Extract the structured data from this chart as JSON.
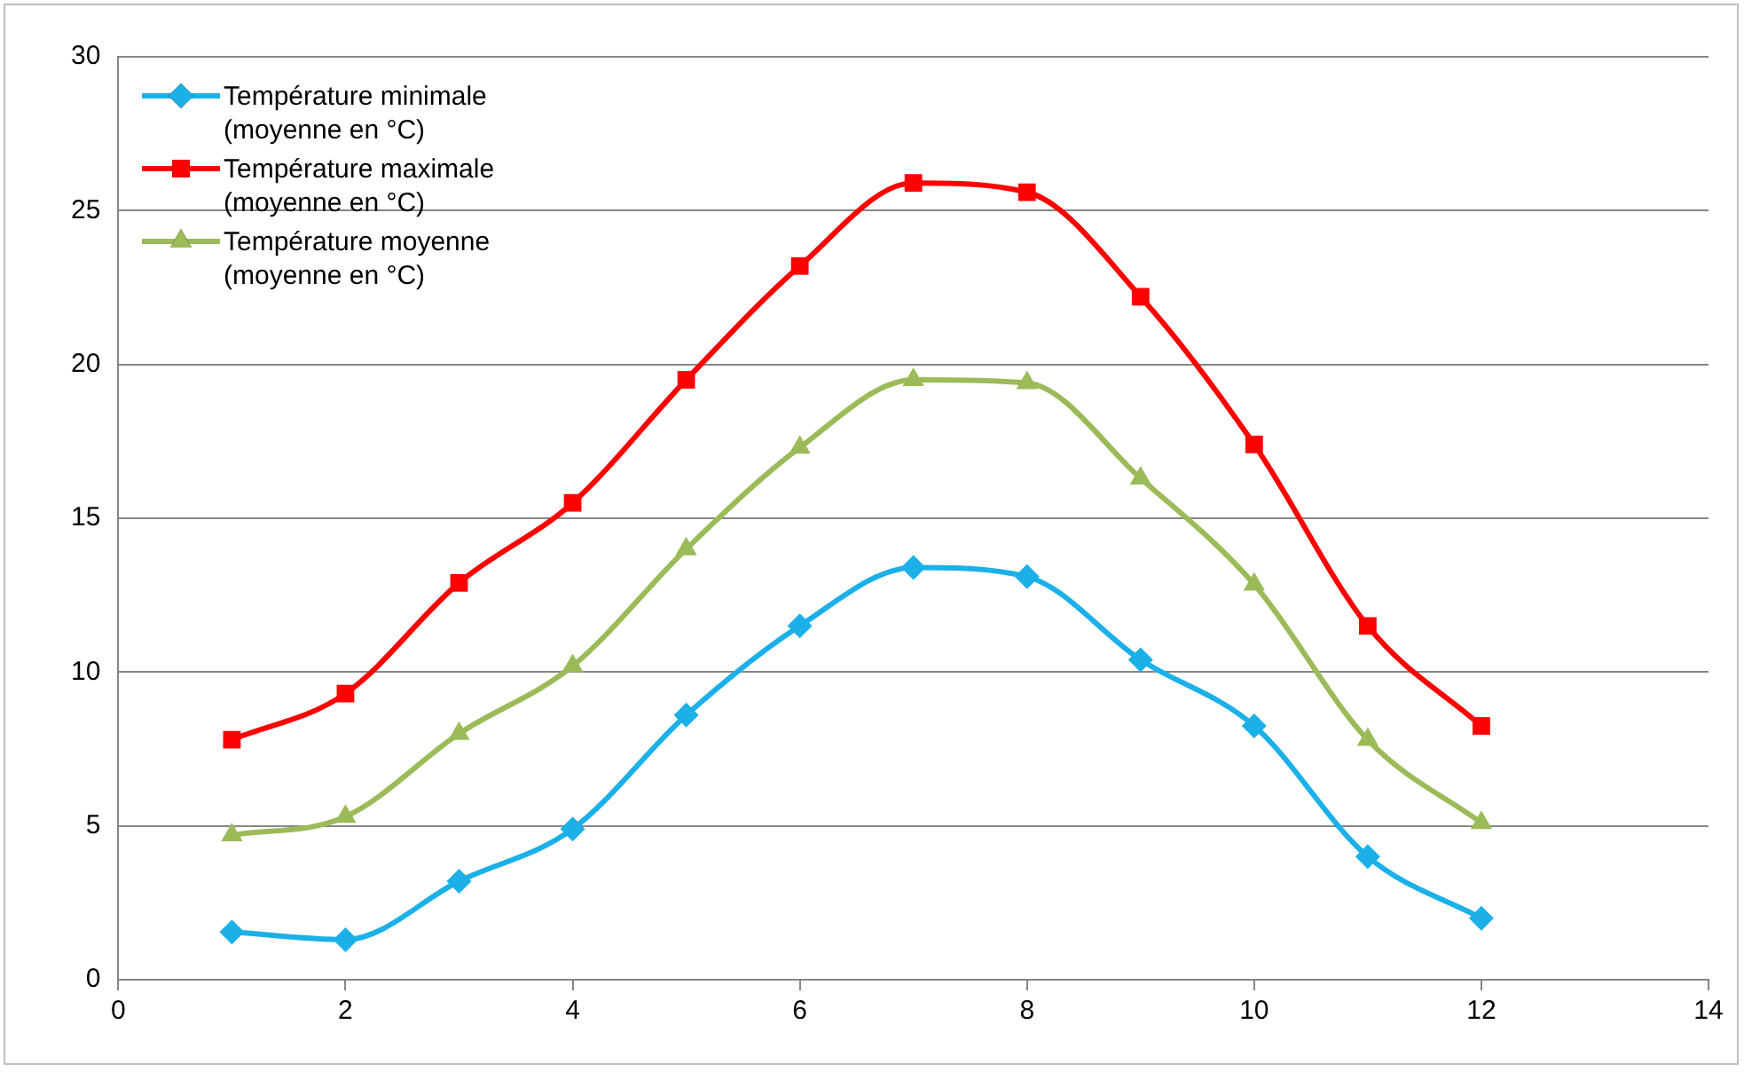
{
  "chart_data": {
    "type": "line",
    "x": [
      1,
      2,
      3,
      4,
      5,
      6,
      7,
      8,
      9,
      10,
      11,
      12
    ],
    "series": [
      {
        "name": "Température minimale (moyenne en °C)",
        "color": "#1cb0e8",
        "marker": "diamond",
        "values": [
          1.55,
          1.3,
          3.2,
          4.9,
          8.6,
          11.5,
          13.4,
          13.1,
          10.4,
          8.25,
          4.0,
          2.0
        ]
      },
      {
        "name": "Température maximale (moyenne en °C)",
        "color": "#ff0000",
        "marker": "square",
        "values": [
          7.8,
          9.3,
          12.9,
          15.5,
          19.5,
          23.2,
          25.9,
          25.6,
          22.2,
          17.4,
          11.5,
          8.25
        ]
      },
      {
        "name": "Température moyenne (moyenne en °C)",
        "color": "#9bbb59",
        "marker": "triangle",
        "values": [
          4.7,
          5.3,
          8.0,
          10.2,
          14.0,
          17.3,
          19.5,
          19.4,
          16.3,
          12.85,
          7.8,
          5.1
        ]
      }
    ],
    "xlim": [
      0,
      14
    ],
    "xticks": [
      0,
      2,
      4,
      6,
      8,
      10,
      12,
      14
    ],
    "ylim": [
      0,
      30
    ],
    "yticks": [
      0,
      5,
      10,
      15,
      20,
      25,
      30
    ],
    "grid": "y",
    "legend": "top left",
    "line_style": "solid"
  }
}
